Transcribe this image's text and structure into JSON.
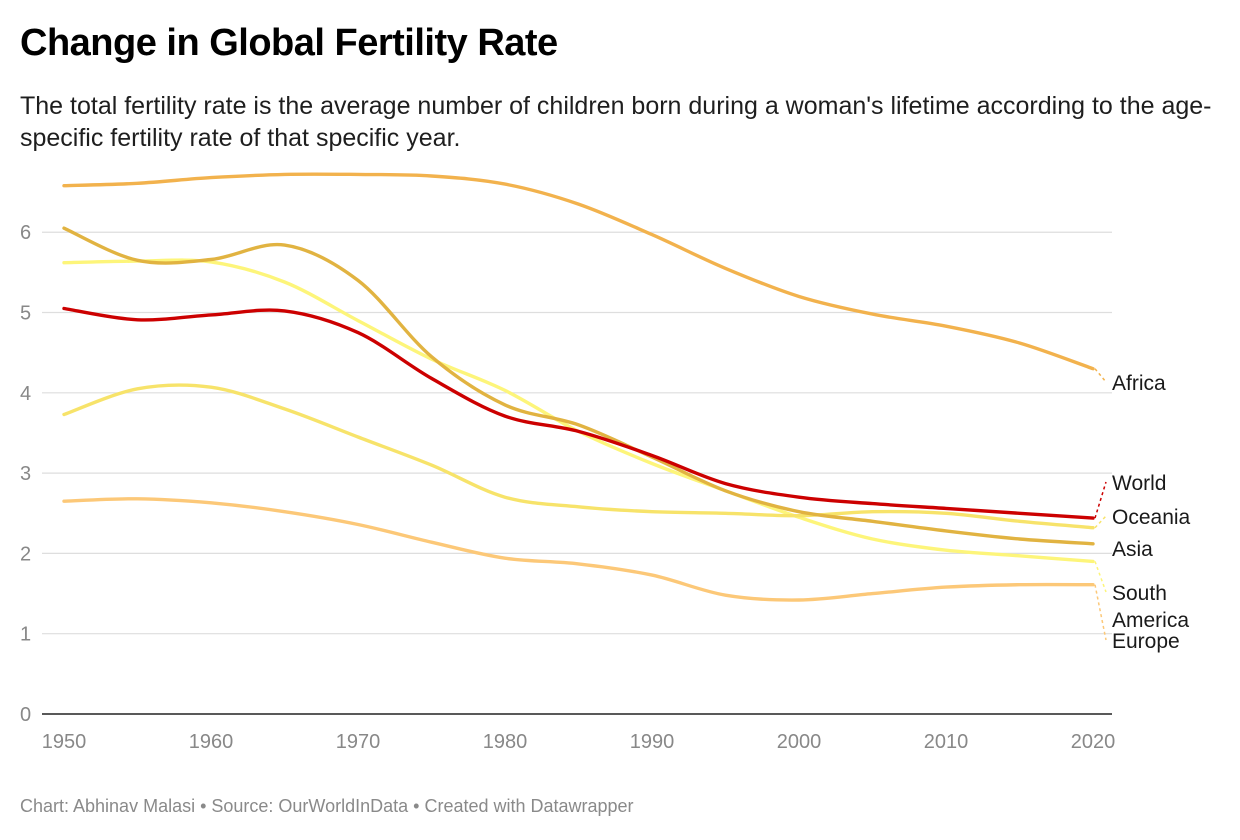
{
  "title": "Change in Global Fertility Rate",
  "subtitle": "The total fertility rate is the average number of children born during a woman's lifetime according to the age-specific fertility rate of that specific year.",
  "footer": "Chart: Abhinav Malasi • Source: OurWorldInData • Created with Datawrapper",
  "chart_data": {
    "type": "line",
    "title": "Change in Global Fertility Rate",
    "xlabel": "",
    "ylabel": "",
    "xlim": [
      1950,
      2020
    ],
    "ylim": [
      0,
      6.8
    ],
    "x_ticks": [
      1950,
      1960,
      1970,
      1980,
      1990,
      2000,
      2010,
      2020
    ],
    "y_ticks": [
      0,
      1,
      2,
      3,
      4,
      5,
      6
    ],
    "grid": true,
    "legend": "direct labels at right end of lines",
    "x": [
      1950,
      1955,
      1960,
      1965,
      1970,
      1975,
      1980,
      1985,
      1990,
      1995,
      2000,
      2005,
      2010,
      2015,
      2020
    ],
    "series": [
      {
        "name": "Africa",
        "color": "#f2b24d",
        "values": [
          6.58,
          6.61,
          6.68,
          6.72,
          6.72,
          6.7,
          6.6,
          6.35,
          5.97,
          5.55,
          5.2,
          4.98,
          4.83,
          4.62,
          4.3
        ]
      },
      {
        "name": "World",
        "color": "#cc0000",
        "values": [
          5.05,
          4.91,
          4.97,
          5.02,
          4.75,
          4.18,
          3.71,
          3.52,
          3.22,
          2.87,
          2.7,
          2.62,
          2.56,
          2.5,
          2.44
        ]
      },
      {
        "name": "Oceania",
        "color": "#f7e36a",
        "values": [
          3.73,
          4.05,
          4.07,
          3.8,
          3.45,
          3.1,
          2.7,
          2.58,
          2.52,
          2.5,
          2.47,
          2.52,
          2.5,
          2.4,
          2.32
        ]
      },
      {
        "name": "Asia",
        "color": "#e1b341",
        "values": [
          6.05,
          5.65,
          5.66,
          5.84,
          5.4,
          4.45,
          3.85,
          3.6,
          3.2,
          2.78,
          2.52,
          2.4,
          2.28,
          2.18,
          2.12
        ]
      },
      {
        "name": "South America",
        "color": "#fdf57a",
        "values": [
          5.62,
          5.64,
          5.63,
          5.38,
          4.9,
          4.42,
          4.03,
          3.52,
          3.12,
          2.78,
          2.45,
          2.18,
          2.04,
          1.97,
          1.9
        ]
      },
      {
        "name": "Europe",
        "color": "#fcc878",
        "values": [
          2.65,
          2.68,
          2.63,
          2.52,
          2.36,
          2.14,
          1.94,
          1.87,
          1.73,
          1.48,
          1.42,
          1.5,
          1.58,
          1.61,
          1.61
        ]
      }
    ],
    "labels": [
      {
        "series": "Africa",
        "lines": [
          "Africa"
        ]
      },
      {
        "series": "World",
        "lines": [
          "World"
        ]
      },
      {
        "series": "Oceania",
        "lines": [
          "Oceania"
        ]
      },
      {
        "series": "Asia",
        "lines": [
          "Asia"
        ]
      },
      {
        "series": "South America",
        "lines": [
          "South",
          "America"
        ]
      },
      {
        "series": "Europe",
        "lines": [
          "Europe"
        ]
      }
    ]
  }
}
